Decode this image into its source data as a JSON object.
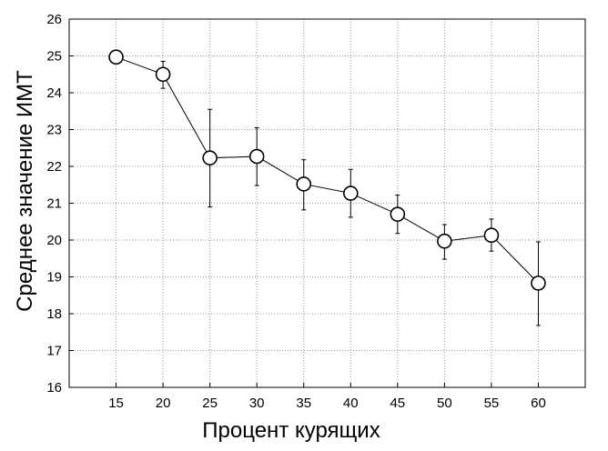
{
  "chart_data": {
    "type": "line",
    "title": "",
    "xlabel": "Процент курящих",
    "ylabel": "Среднее значение ИМТ",
    "x": [
      15,
      20,
      25,
      30,
      35,
      40,
      45,
      50,
      55,
      60
    ],
    "xlim": [
      10,
      65
    ],
    "xticks": [
      15,
      20,
      25,
      30,
      35,
      40,
      45,
      50,
      55,
      60
    ],
    "ylim": [
      16,
      26
    ],
    "yticks": [
      16,
      17,
      18,
      19,
      20,
      21,
      22,
      23,
      24,
      25,
      26
    ],
    "grid": true,
    "grid_style": "dotted",
    "legend": "none",
    "series": [
      {
        "values": [
          24.97,
          24.5,
          22.23,
          22.27,
          21.52,
          21.27,
          20.7,
          19.97,
          20.13,
          18.83
        ],
        "error_low": [
          24.97,
          24.12,
          20.9,
          21.48,
          20.82,
          20.62,
          20.18,
          19.48,
          19.7,
          17.68
        ],
        "error_high": [
          24.97,
          24.85,
          23.55,
          23.05,
          22.18,
          21.92,
          21.22,
          20.42,
          20.57,
          19.95
        ],
        "color": "#000000",
        "marker": "open-circle"
      }
    ]
  }
}
